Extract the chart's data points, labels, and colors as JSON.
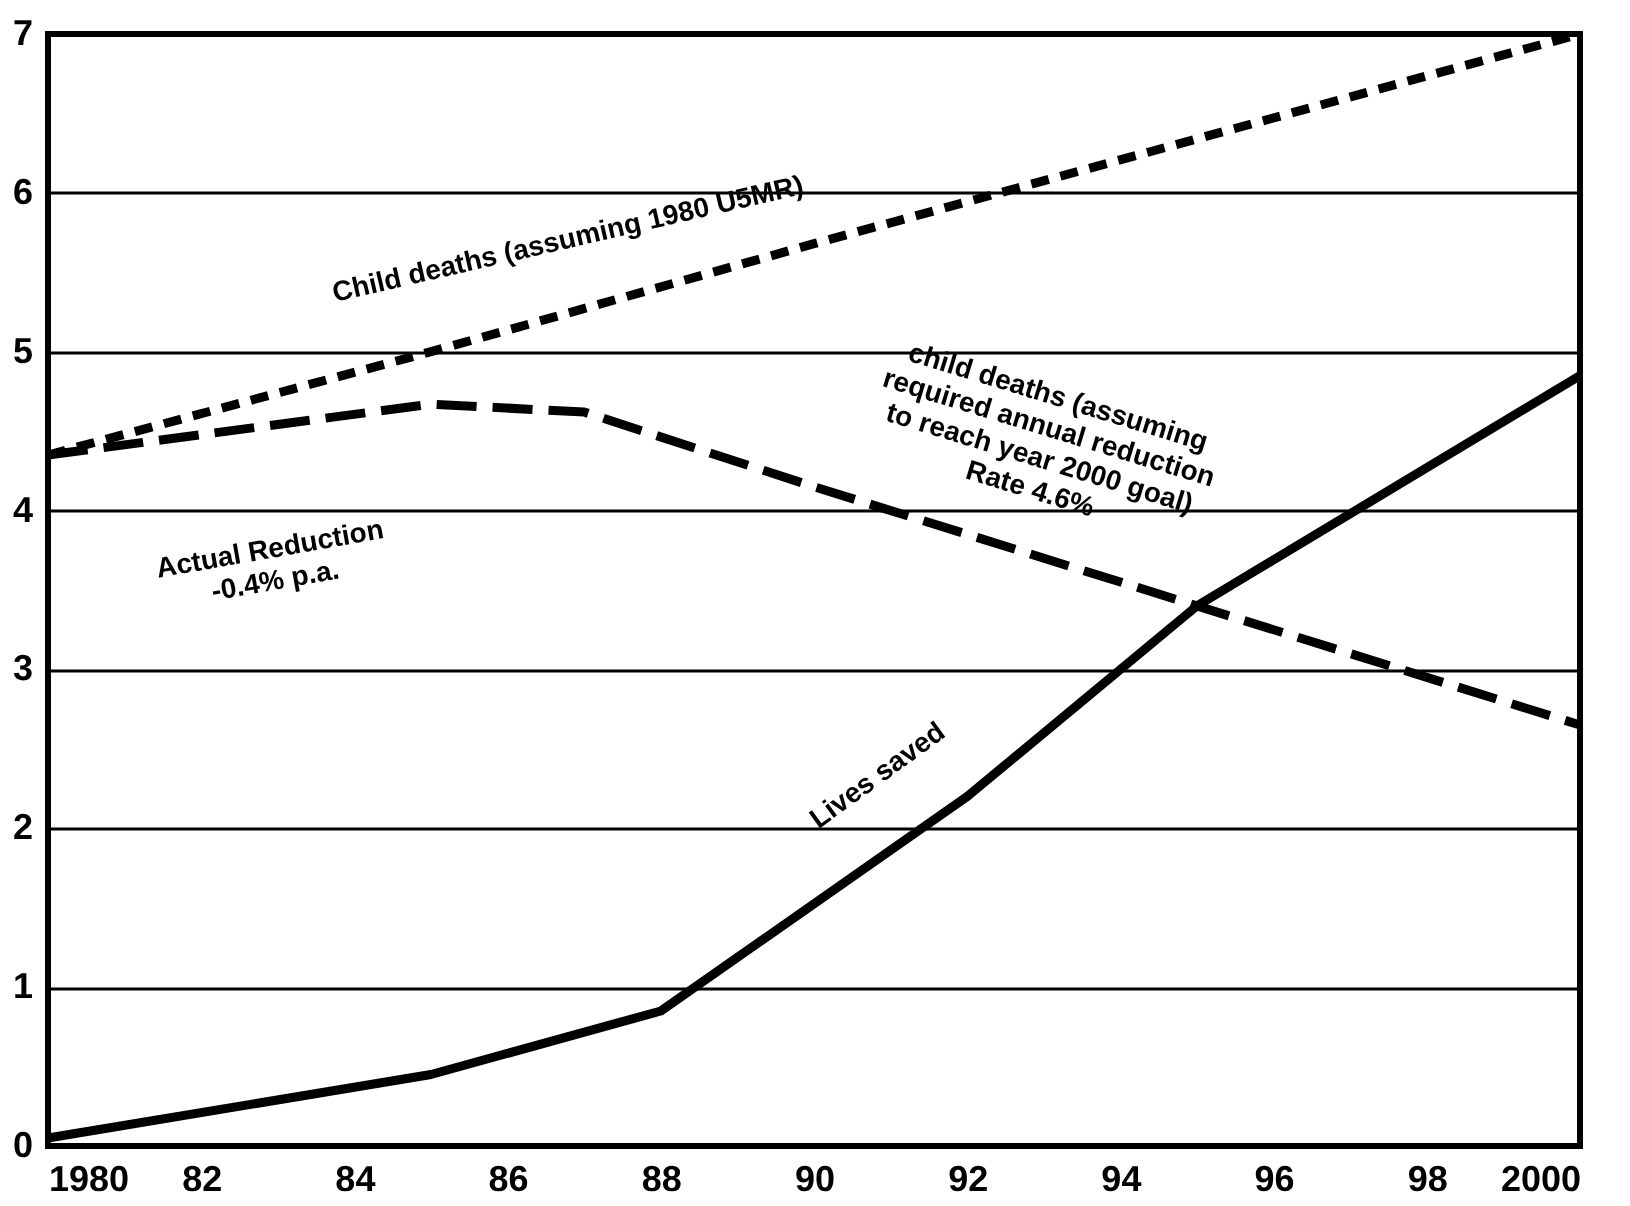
{
  "chart_data": {
    "type": "line",
    "series": [
      {
        "color": "#000000",
        "line_style": "dotted",
        "x": [
          1980,
          1985,
          1990,
          1995,
          2000
        ],
        "values": [
          4.35,
          5.0,
          5.68,
          6.34,
          7.0
        ]
      },
      {
        "color": "#000000",
        "line_style": "dashed",
        "x": [
          1980,
          1985,
          1987,
          1990,
          1995,
          1997,
          2000
        ],
        "values": [
          4.35,
          4.67,
          4.62,
          4.15,
          3.4,
          3.1,
          2.65
        ]
      },
      {
        "color": "#000000",
        "line_style": "solid",
        "x": [
          1980,
          1985,
          1988,
          1992,
          1995,
          2000
        ],
        "values": [
          0.05,
          0.45,
          0.85,
          2.2,
          3.4,
          4.85
        ]
      }
    ],
    "annotations": [
      "Child deaths (assuming 1980 U5MR)",
      "Actual Reduction\n-0.4% p.a.",
      "child deaths (assuming\nrequired annual reduction\nto reach year 2000 goal)\nRate 4.6%",
      "Lives saved"
    ],
    "xlim": [
      1980,
      2000
    ],
    "xticks": [
      1980,
      {
        "value": 1982,
        "label": "82"
      },
      {
        "value": 1984,
        "label": "84"
      },
      {
        "value": 1986,
        "label": "86"
      },
      {
        "value": 1988,
        "label": "88"
      },
      {
        "value": 1990,
        "label": "90"
      },
      {
        "value": 1992,
        "label": "92"
      },
      {
        "value": 1994,
        "label": "94"
      },
      {
        "value": 1996,
        "label": "96"
      },
      {
        "value": 1998,
        "label": "98"
      },
      2000
    ],
    "ylim": [
      0,
      7
    ],
    "yticks": [
      0,
      1,
      2,
      3,
      4,
      5,
      6,
      7
    ],
    "grid": "y",
    "marker": "none"
  }
}
